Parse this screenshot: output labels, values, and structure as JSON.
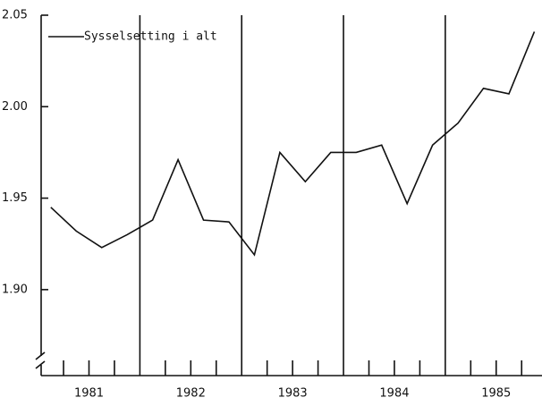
{
  "chart_data": {
    "type": "line",
    "x": [
      1981.125,
      1981.375,
      1981.625,
      1981.875,
      1982.125,
      1982.375,
      1982.625,
      1982.875,
      1983.125,
      1983.375,
      1983.625,
      1983.875,
      1984.125,
      1984.375,
      1984.625,
      1984.875,
      1985.125,
      1985.375,
      1985.625,
      1985.875
    ],
    "series": [
      {
        "name": "Sysselsetting i alt",
        "color": "#111111",
        "values": [
          1.945,
          1.932,
          1.923,
          1.93,
          1.938,
          1.971,
          1.938,
          1.937,
          1.919,
          1.975,
          1.959,
          1.975,
          1.975,
          1.979,
          1.947,
          1.979,
          1.991,
          2.01,
          2.007,
          2.041
        ]
      }
    ],
    "xlim": [
      1981.03,
      1985.95
    ],
    "xticks": [
      {
        "value": 1981.5,
        "label": "1981"
      },
      {
        "value": 1982.5,
        "label": "1982"
      },
      {
        "value": 1983.5,
        "label": "1983"
      },
      {
        "value": 1984.5,
        "label": "1984"
      },
      {
        "value": 1985.5,
        "label": "1985"
      }
    ],
    "minor_xticks": [
      1981.25,
      1981.5,
      1981.75,
      1982.25,
      1982.5,
      1982.75,
      1983.25,
      1983.5,
      1983.75,
      1984.25,
      1984.5,
      1984.75,
      1985.25,
      1985.5,
      1985.75
    ],
    "vlines": [
      1982,
      1983,
      1984,
      1985
    ],
    "ylim": [
      1.853,
      2.05
    ],
    "yticks": [
      {
        "value": 1.9,
        "label": "1.90"
      },
      {
        "value": 1.95,
        "label": "1.95"
      },
      {
        "value": 2.0,
        "label": "2.00"
      },
      {
        "value": 2.05,
        "label": "2.05"
      }
    ],
    "legend": "top-left"
  }
}
